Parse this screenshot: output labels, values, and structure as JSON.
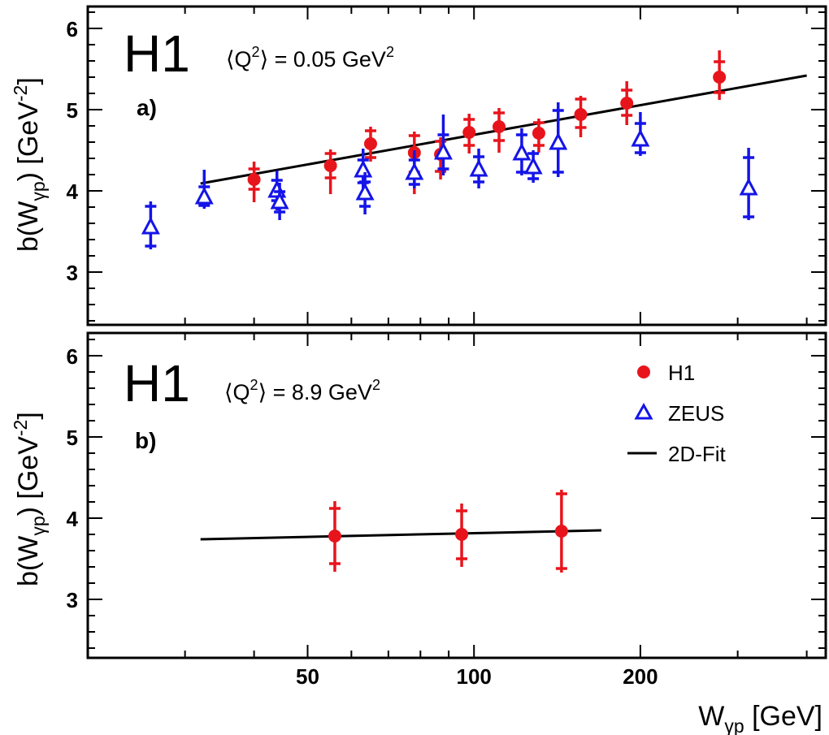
{
  "chart_data": [
    {
      "type": "scatter",
      "panel_letter": "a)",
      "experiment_tag": "H1",
      "annotation": "⟨Q²⟩ = 0.05 GeV²",
      "annotation_parts": {
        "prefix": "⟨Q",
        "sup1": "2",
        "mid": "⟩ = 0.05 GeV",
        "sup2": "2"
      },
      "ylabel": "b(Wγp)  [GeV⁻²]",
      "ylim": [
        2.4,
        6.3
      ],
      "x_scale": "log",
      "xlim": [
        20.5,
        400
      ],
      "yticks": [
        "3",
        "4",
        "5",
        "6"
      ],
      "series": [
        {
          "name": "H1",
          "color": "#e8141c",
          "marker": "circle",
          "points": [
            {
              "x": 40,
              "y": 4.14,
              "stat": [
                4.02,
                4.27
              ],
              "tot": [
                3.86,
                4.36
              ]
            },
            {
              "x": 55,
              "y": 4.31,
              "stat": [
                4.16,
                4.46
              ],
              "tot": [
                3.96,
                4.51
              ]
            },
            {
              "x": 65,
              "y": 4.58,
              "stat": [
                4.41,
                4.74
              ],
              "tot": [
                4.36,
                4.79
              ]
            },
            {
              "x": 78,
              "y": 4.47,
              "stat": [
                4.23,
                4.68
              ],
              "tot": [
                3.96,
                4.73
              ]
            },
            {
              "x": 87,
              "y": 4.45,
              "stat": [
                4.24,
                4.61
              ],
              "tot": [
                4.14,
                4.66
              ]
            },
            {
              "x": 98,
              "y": 4.72,
              "stat": [
                4.56,
                4.88
              ],
              "tot": [
                4.46,
                4.95
              ]
            },
            {
              "x": 111,
              "y": 4.79,
              "stat": [
                4.62,
                4.96
              ],
              "tot": [
                4.47,
                5.02
              ]
            },
            {
              "x": 131,
              "y": 4.71,
              "stat": [
                4.56,
                4.84
              ],
              "tot": [
                4.47,
                4.89
              ]
            },
            {
              "x": 156,
              "y": 4.94,
              "stat": [
                4.78,
                5.13
              ],
              "tot": [
                4.66,
                5.17
              ]
            },
            {
              "x": 189,
              "y": 5.08,
              "stat": [
                4.93,
                5.24
              ],
              "tot": [
                4.81,
                5.35
              ]
            },
            {
              "x": 278,
              "y": 5.4,
              "stat": [
                5.21,
                5.59
              ],
              "tot": [
                5.12,
                5.73
              ]
            }
          ]
        },
        {
          "name": "ZEUS",
          "color": "#1414e8",
          "marker": "open-triangle",
          "points": [
            {
              "x": 26,
              "y": 3.55,
              "stat": [
                3.32,
                3.81
              ],
              "tot": [
                3.28,
                3.87
              ]
            },
            {
              "x": 32.5,
              "y": 3.92,
              "stat": [
                3.82,
                4.05
              ],
              "tot": [
                3.78,
                4.26
              ]
            },
            {
              "x": 44,
              "y": 4.0,
              "stat": [
                3.88,
                4.13
              ],
              "tot": [
                3.76,
                4.25
              ]
            },
            {
              "x": 44.5,
              "y": 3.86,
              "stat": [
                3.74,
                3.99
              ],
              "tot": [
                3.64,
                4.1
              ]
            },
            {
              "x": 63,
              "y": 4.25,
              "stat": [
                4.1,
                4.38
              ],
              "tot": [
                3.98,
                4.52
              ]
            },
            {
              "x": 63.5,
              "y": 3.97,
              "stat": [
                3.81,
                4.11
              ],
              "tot": [
                3.71,
                4.23
              ]
            },
            {
              "x": 78,
              "y": 4.22,
              "stat": [
                4.08,
                4.38
              ],
              "tot": [
                4.03,
                4.5
              ]
            },
            {
              "x": 88,
              "y": 4.47,
              "stat": [
                4.27,
                4.69
              ],
              "tot": [
                4.19,
                4.94
              ]
            },
            {
              "x": 102,
              "y": 4.26,
              "stat": [
                4.11,
                4.42
              ],
              "tot": [
                4.03,
                4.52
              ]
            },
            {
              "x": 122,
              "y": 4.46,
              "stat": [
                4.23,
                4.69
              ],
              "tot": [
                4.19,
                4.77
              ]
            },
            {
              "x": 128,
              "y": 4.29,
              "stat": [
                4.15,
                4.46
              ],
              "tot": [
                4.1,
                4.5
              ]
            },
            {
              "x": 142,
              "y": 4.59,
              "stat": [
                4.23,
                4.99
              ],
              "tot": [
                4.17,
                5.09
              ]
            },
            {
              "x": 200,
              "y": 4.63,
              "stat": [
                4.47,
                4.83
              ],
              "tot": [
                4.43,
                4.97
              ]
            },
            {
              "x": 314,
              "y": 4.03,
              "stat": [
                3.68,
                4.41
              ],
              "tot": [
                3.64,
                4.53
              ]
            }
          ]
        },
        {
          "name": "2D-Fit",
          "color": "#000000",
          "marker": "line",
          "points": [
            {
              "x": 32,
              "y": 4.09
            },
            {
              "x": 400,
              "y": 5.42
            }
          ]
        }
      ]
    },
    {
      "type": "scatter",
      "panel_letter": "b)",
      "experiment_tag": "H1",
      "annotation": "⟨Q²⟩ = 8.9 GeV²",
      "annotation_parts": {
        "prefix": "⟨Q",
        "sup1": "2",
        "mid": "⟩ = 8.9 GeV",
        "sup2": "2"
      },
      "ylabel": "b(Wγp)  [GeV⁻²]",
      "ylim": [
        2.3,
        6.3
      ],
      "x_scale": "log",
      "xlim": [
        20.5,
        400
      ],
      "xticks": [
        "50",
        "100",
        "200"
      ],
      "yticks": [
        "3",
        "4",
        "5",
        "6"
      ],
      "xlabel": "Wγp [GeV]",
      "legend": {
        "placement": "top-right",
        "items": [
          {
            "label": "H1",
            "marker": "circle",
            "color": "#e8141c"
          },
          {
            "label": "ZEUS",
            "marker": "open-triangle",
            "color": "#1414e8"
          },
          {
            "label": "2D-Fit",
            "marker": "line",
            "color": "#000000"
          }
        ]
      },
      "series": [
        {
          "name": "H1",
          "color": "#e8141c",
          "marker": "circle",
          "points": [
            {
              "x": 56,
              "y": 3.78,
              "stat": [
                3.44,
                4.12
              ],
              "tot": [
                3.34,
                4.21
              ]
            },
            {
              "x": 95,
              "y": 3.8,
              "stat": [
                3.5,
                4.09
              ],
              "tot": [
                3.4,
                4.18
              ]
            },
            {
              "x": 144,
              "y": 3.84,
              "stat": [
                3.38,
                4.3
              ],
              "tot": [
                3.33,
                4.35
              ]
            }
          ]
        },
        {
          "name": "2D-Fit",
          "color": "#000000",
          "marker": "line",
          "points": [
            {
              "x": 32,
              "y": 3.74
            },
            {
              "x": 170,
              "y": 3.85
            }
          ]
        }
      ]
    }
  ]
}
